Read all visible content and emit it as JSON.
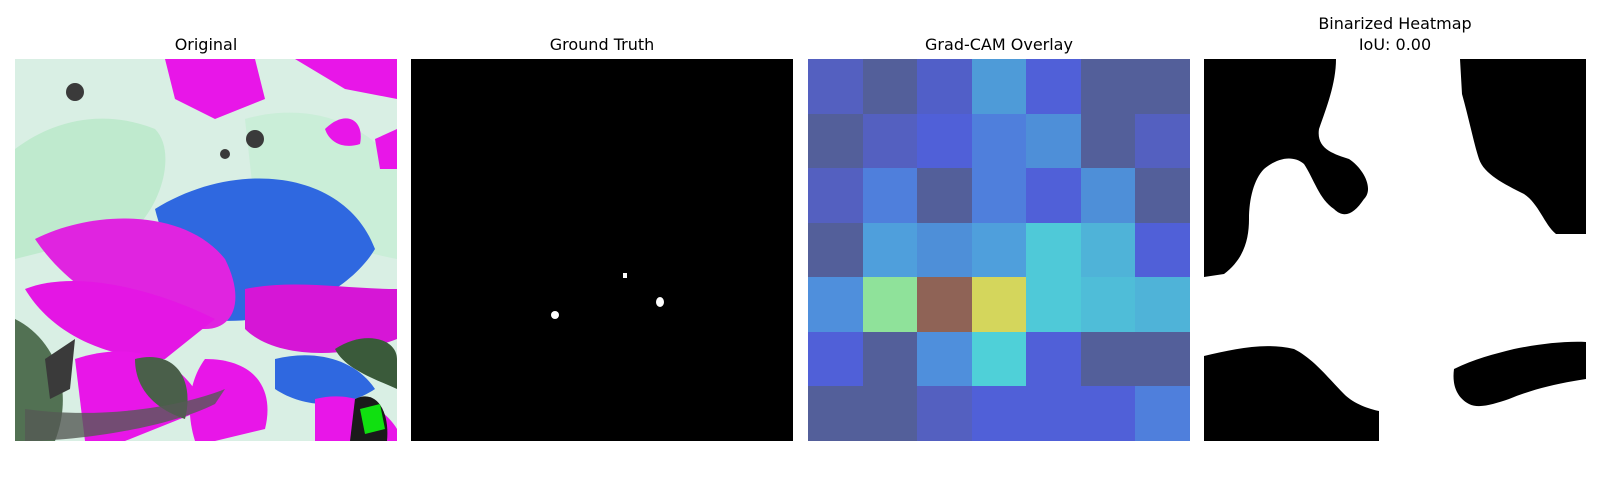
{
  "panels": {
    "original": {
      "title": "Original"
    },
    "ground_truth": {
      "title": "Ground Truth"
    },
    "gradcam": {
      "title": "Grad-CAM Overlay",
      "grid_colors": [
        [
          "#5460c0",
          "#535f9a",
          "#515fc8",
          "#4e9bd8",
          "#5060d8",
          "#535f9a",
          "#535f9a"
        ],
        [
          "#535f9a",
          "#5460c0",
          "#5060d8",
          "#4f7fdc",
          "#4e8fd8",
          "#535f9a",
          "#5460c0"
        ],
        [
          "#5460c0",
          "#4f7fdc",
          "#535f9a",
          "#4f7fdc",
          "#5060d8",
          "#4e8fd8",
          "#535f9a"
        ],
        [
          "#535f9a",
          "#4f9fdc",
          "#4e8fd8",
          "#4f9fdc",
          "#4fc9d8",
          "#4fb3d8",
          "#5060d8"
        ],
        [
          "#4f8fdc",
          "#8fe29a",
          "#8f6356",
          "#d4d65c",
          "#4fc9d8",
          "#4fbdd8",
          "#4fb3d8"
        ],
        [
          "#5060d8",
          "#535f9a",
          "#4f8fdc",
          "#4fd0d8",
          "#5060d8",
          "#535f9a",
          "#535f9a"
        ],
        [
          "#535f9a",
          "#535f9a",
          "#5460c0",
          "#5060d8",
          "#5060d8",
          "#5060d8",
          "#4f7fdc"
        ]
      ]
    },
    "binarized": {
      "title": "Binarized Heatmap\nIoU: 0.00"
    }
  }
}
